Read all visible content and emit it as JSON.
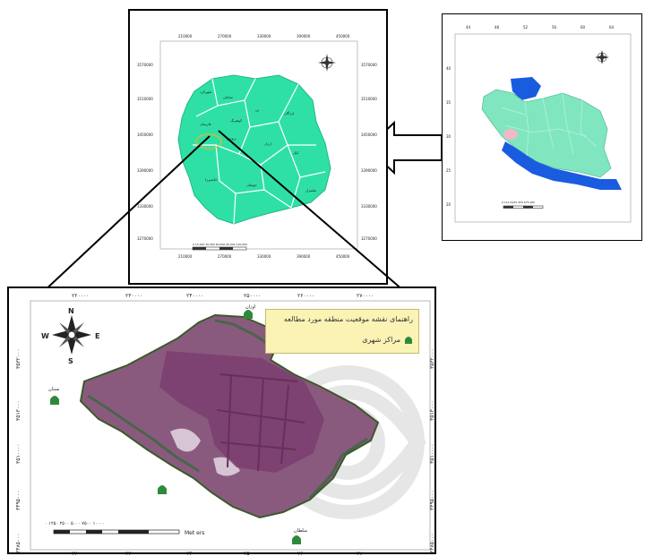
{
  "iran_map": {
    "lat_ticks": [
      "40",
      "35",
      "30",
      "25",
      "20"
    ],
    "lon_ticks": [
      "44",
      "48",
      "52",
      "56",
      "60",
      "64"
    ],
    "scale_text": "0 112.5225 450 675 900",
    "colors": {
      "land": "#7fe6c0",
      "sea": "#1a5ce0",
      "study": "#f2b8c8"
    }
  },
  "province_map": {
    "top_ticks": [
      "210000",
      "270000",
      "330000",
      "390000",
      "450000"
    ],
    "left_ticks": [
      "3570000",
      "3510000",
      "3450000",
      "3390000",
      "3330000",
      "3270000"
    ],
    "county_labels": [
      "شهرکرد",
      "سامان",
      "فارسان",
      "کوهرنگ",
      "بن",
      "لردگان",
      "بروجن",
      "اردل",
      "کیار",
      "خانمیرزا",
      "جونقان",
      "شلمزار"
    ],
    "scale_text": "0 15,000 30,000 60,000 90,000 120,000",
    "colors": {
      "land": "#2fe0a6",
      "border": "#ffffff"
    }
  },
  "study_map": {
    "top_ticks": [
      "۲۲۰۰۰۰",
      "۲۳۰۰۰۰",
      "۲۴۰۰۰۰",
      "۲۵۰۰۰۰",
      "۲۶۰۰۰۰",
      "۲۷۰۰۰۰"
    ],
    "left_ticks": [
      "۳۵۳۲۰۰۰",
      "۳۵۱۳۰۰۰",
      "۳۵۱۰۰۰۰",
      "۳۴۹۵۰۰۰",
      "۳۴۸۵۰۰۰"
    ],
    "compass": {
      "n": "N",
      "s": "S",
      "e": "E",
      "w": "W"
    },
    "legend": {
      "title": "راهنمای نقشه موقعیت منطقه مورد مطالعه",
      "item": "مراکز شهری"
    },
    "cities": [
      "اوزان",
      "بستان",
      "سلطان"
    ],
    "scale_numbers": "۰ ۱۲۵۰ ۲۵۰۰ ۵۰۰۰ ۷۵۰۰ ۱۰۰۰۰",
    "scale_unit": "Met ers",
    "colors": {
      "raster": "#8a5a7e",
      "legend_bg": "#fbf3b4"
    }
  }
}
